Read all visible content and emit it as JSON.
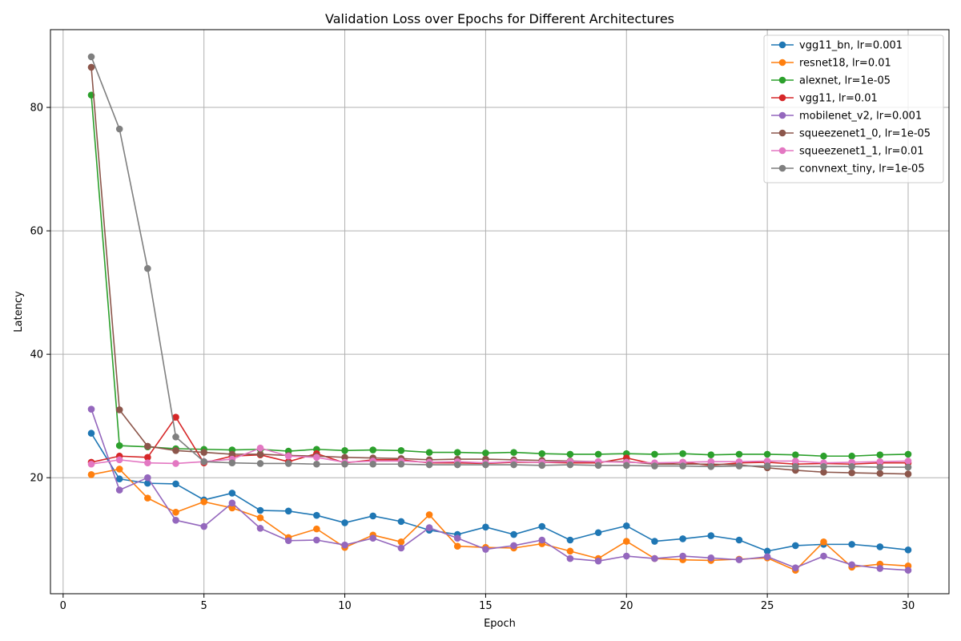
{
  "chart_data": {
    "type": "line",
    "title": "Validation Loss over Epochs for Different Architectures",
    "xlabel": "Epoch",
    "ylabel": "Latency",
    "xlim": [
      -0.45,
      31.45
    ],
    "ylim": [
      1.2,
      92.6
    ],
    "xticks": [
      0,
      5,
      10,
      15,
      20,
      25,
      30
    ],
    "yticks": [
      20,
      40,
      60,
      80
    ],
    "grid": true,
    "legend_position": "top-right",
    "x": [
      1,
      2,
      3,
      4,
      5,
      6,
      7,
      8,
      9,
      10,
      11,
      12,
      13,
      14,
      15,
      16,
      17,
      18,
      19,
      20,
      21,
      22,
      23,
      24,
      25,
      26,
      27,
      28,
      29,
      30
    ],
    "series": [
      {
        "name": "vgg11_bn, lr=0.001",
        "color": "#1f77b4",
        "values": [
          27.2,
          19.8,
          19.1,
          19.0,
          16.4,
          17.5,
          14.7,
          14.6,
          13.9,
          12.7,
          13.8,
          12.9,
          11.5,
          10.8,
          12.0,
          10.8,
          12.1,
          9.9,
          11.1,
          12.2,
          9.7,
          10.1,
          10.6,
          9.9,
          8.1,
          9.0,
          9.2,
          9.2,
          8.8,
          8.3
        ]
      },
      {
        "name": "resnet18, lr=0.01",
        "color": "#ff7f0e",
        "values": [
          20.5,
          21.4,
          16.7,
          14.4,
          16.1,
          15.1,
          13.5,
          10.3,
          11.7,
          8.7,
          10.7,
          9.6,
          14.0,
          8.9,
          8.7,
          8.6,
          9.3,
          8.1,
          6.9,
          9.7,
          6.9,
          6.7,
          6.6,
          6.8,
          7.0,
          5.0,
          9.6,
          5.5,
          6.0,
          5.7
        ]
      },
      {
        "name": "alexnet, lr=1e-05",
        "color": "#2ca02c",
        "values": [
          82.0,
          25.2,
          25.0,
          24.7,
          24.6,
          24.5,
          24.6,
          24.3,
          24.6,
          24.4,
          24.5,
          24.4,
          24.1,
          24.1,
          24.0,
          24.1,
          23.9,
          23.8,
          23.8,
          23.9,
          23.8,
          23.9,
          23.7,
          23.8,
          23.8,
          23.7,
          23.5,
          23.5,
          23.7,
          23.8
        ]
      },
      {
        "name": "vgg11, lr=0.01",
        "color": "#d62728",
        "values": [
          22.5,
          23.5,
          23.3,
          29.8,
          22.4,
          23.5,
          23.7,
          22.6,
          23.9,
          22.4,
          22.9,
          22.9,
          22.4,
          22.4,
          22.3,
          22.5,
          22.5,
          22.4,
          22.4,
          23.2,
          22.2,
          22.5,
          22.0,
          22.4,
          22.5,
          22.2,
          22.3,
          22.2,
          22.4,
          22.4
        ]
      },
      {
        "name": "mobilenet_v2, lr=0.001",
        "color": "#9467bd",
        "values": [
          31.1,
          18.0,
          20.0,
          13.1,
          12.1,
          15.9,
          11.8,
          9.8,
          9.9,
          9.1,
          10.2,
          8.6,
          11.9,
          10.2,
          8.4,
          9.0,
          9.9,
          6.9,
          6.5,
          7.3,
          6.9,
          7.3,
          7.0,
          6.7,
          7.2,
          5.4,
          7.3,
          5.9,
          5.3,
          5.0
        ]
      },
      {
        "name": "squeezenet1_0, lr=1e-05",
        "color": "#8c564b",
        "values": [
          86.5,
          31.0,
          25.1,
          24.4,
          24.1,
          23.8,
          23.8,
          23.6,
          23.5,
          23.3,
          23.2,
          23.1,
          22.9,
          23.0,
          23.0,
          22.9,
          22.8,
          22.7,
          22.6,
          22.6,
          22.2,
          22.2,
          22.2,
          22.1,
          21.6,
          21.2,
          20.9,
          20.8,
          20.7,
          20.6
        ]
      },
      {
        "name": "squeezenet1_1, lr=0.01",
        "color": "#e377c2",
        "values": [
          22.2,
          22.9,
          22.4,
          22.3,
          22.6,
          23.0,
          24.8,
          23.5,
          23.3,
          22.5,
          22.7,
          22.7,
          22.5,
          22.6,
          22.4,
          22.6,
          22.5,
          22.6,
          22.6,
          22.5,
          22.4,
          22.5,
          22.6,
          22.6,
          22.7,
          22.7,
          22.4,
          22.5,
          22.6,
          22.7
        ]
      },
      {
        "name": "convnext_tiny, lr=1e-05",
        "color": "#7f7f7f",
        "values": [
          88.2,
          76.5,
          53.9,
          26.6,
          22.6,
          22.4,
          22.3,
          22.3,
          22.2,
          22.2,
          22.2,
          22.2,
          22.1,
          22.1,
          22.1,
          22.1,
          22.0,
          22.1,
          22.0,
          22.0,
          21.9,
          21.9,
          21.8,
          21.9,
          21.9,
          21.8,
          21.8,
          21.8,
          21.7,
          21.7
        ]
      }
    ]
  }
}
